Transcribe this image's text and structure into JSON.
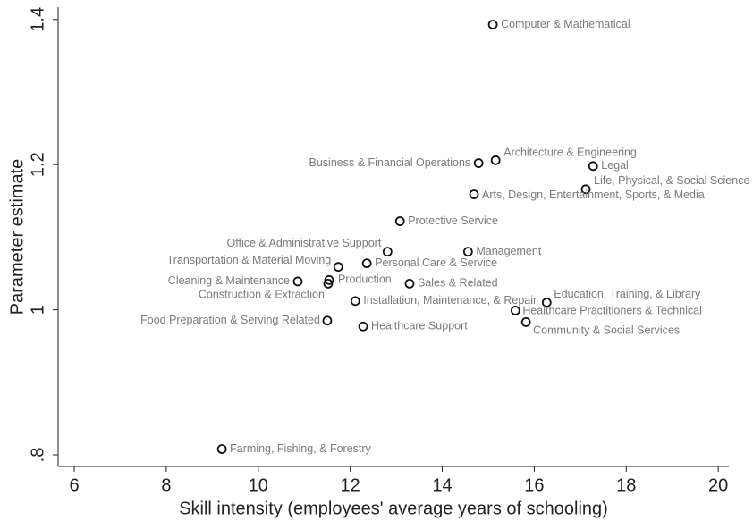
{
  "chart_data": {
    "type": "scatter",
    "xlabel": "Skill intensity (employees' average years of schooling)",
    "ylabel": "Parameter estimate",
    "xlim": [
      5.65,
      20.23
    ],
    "ylim": [
      0.784,
      1.417
    ],
    "xticks": [
      6,
      8,
      10,
      12,
      14,
      16,
      18,
      20
    ],
    "yticks": [
      {
        "value": 0.8,
        "label": ".8"
      },
      1,
      1.2,
      1.4
    ],
    "color": "#111111",
    "labels": [
      "Computer & Mathematical",
      "Architecture & Engineering",
      "Business & Financial Operations",
      "Legal",
      "Life, Physical, & Social Science",
      "Arts, Design, Entertainment, Sports, & Media",
      "Protective Service",
      "Office & Administrative Support",
      "Management",
      "Transportation & Material Moving",
      "Personal Care & Service",
      "Cleaning & Maintenance",
      "Production",
      "Construction & Extraction",
      "Sales & Related",
      "Installation, Maintenance, & Repair",
      "Education, Training, & Library",
      "Healthcare Practitioners & Technical",
      "Food Preparation & Serving Related",
      "Healthcare Support",
      "Community & Social Services",
      "Farming, Fishing, & Forestry"
    ],
    "x": [
      15.1,
      15.16,
      14.79,
      17.28,
      17.12,
      14.69,
      13.08,
      12.81,
      14.56,
      11.74,
      12.36,
      10.86,
      11.54,
      11.52,
      13.29,
      12.11,
      16.27,
      15.59,
      11.5,
      12.28,
      15.82,
      9.21
    ],
    "values": [
      1.393,
      1.206,
      1.202,
      1.198,
      1.166,
      1.159,
      1.122,
      1.08,
      1.08,
      1.059,
      1.064,
      1.039,
      1.041,
      1.036,
      1.036,
      1.012,
      1.01,
      0.999,
      0.985,
      0.977,
      0.983,
      0.808
    ]
  }
}
